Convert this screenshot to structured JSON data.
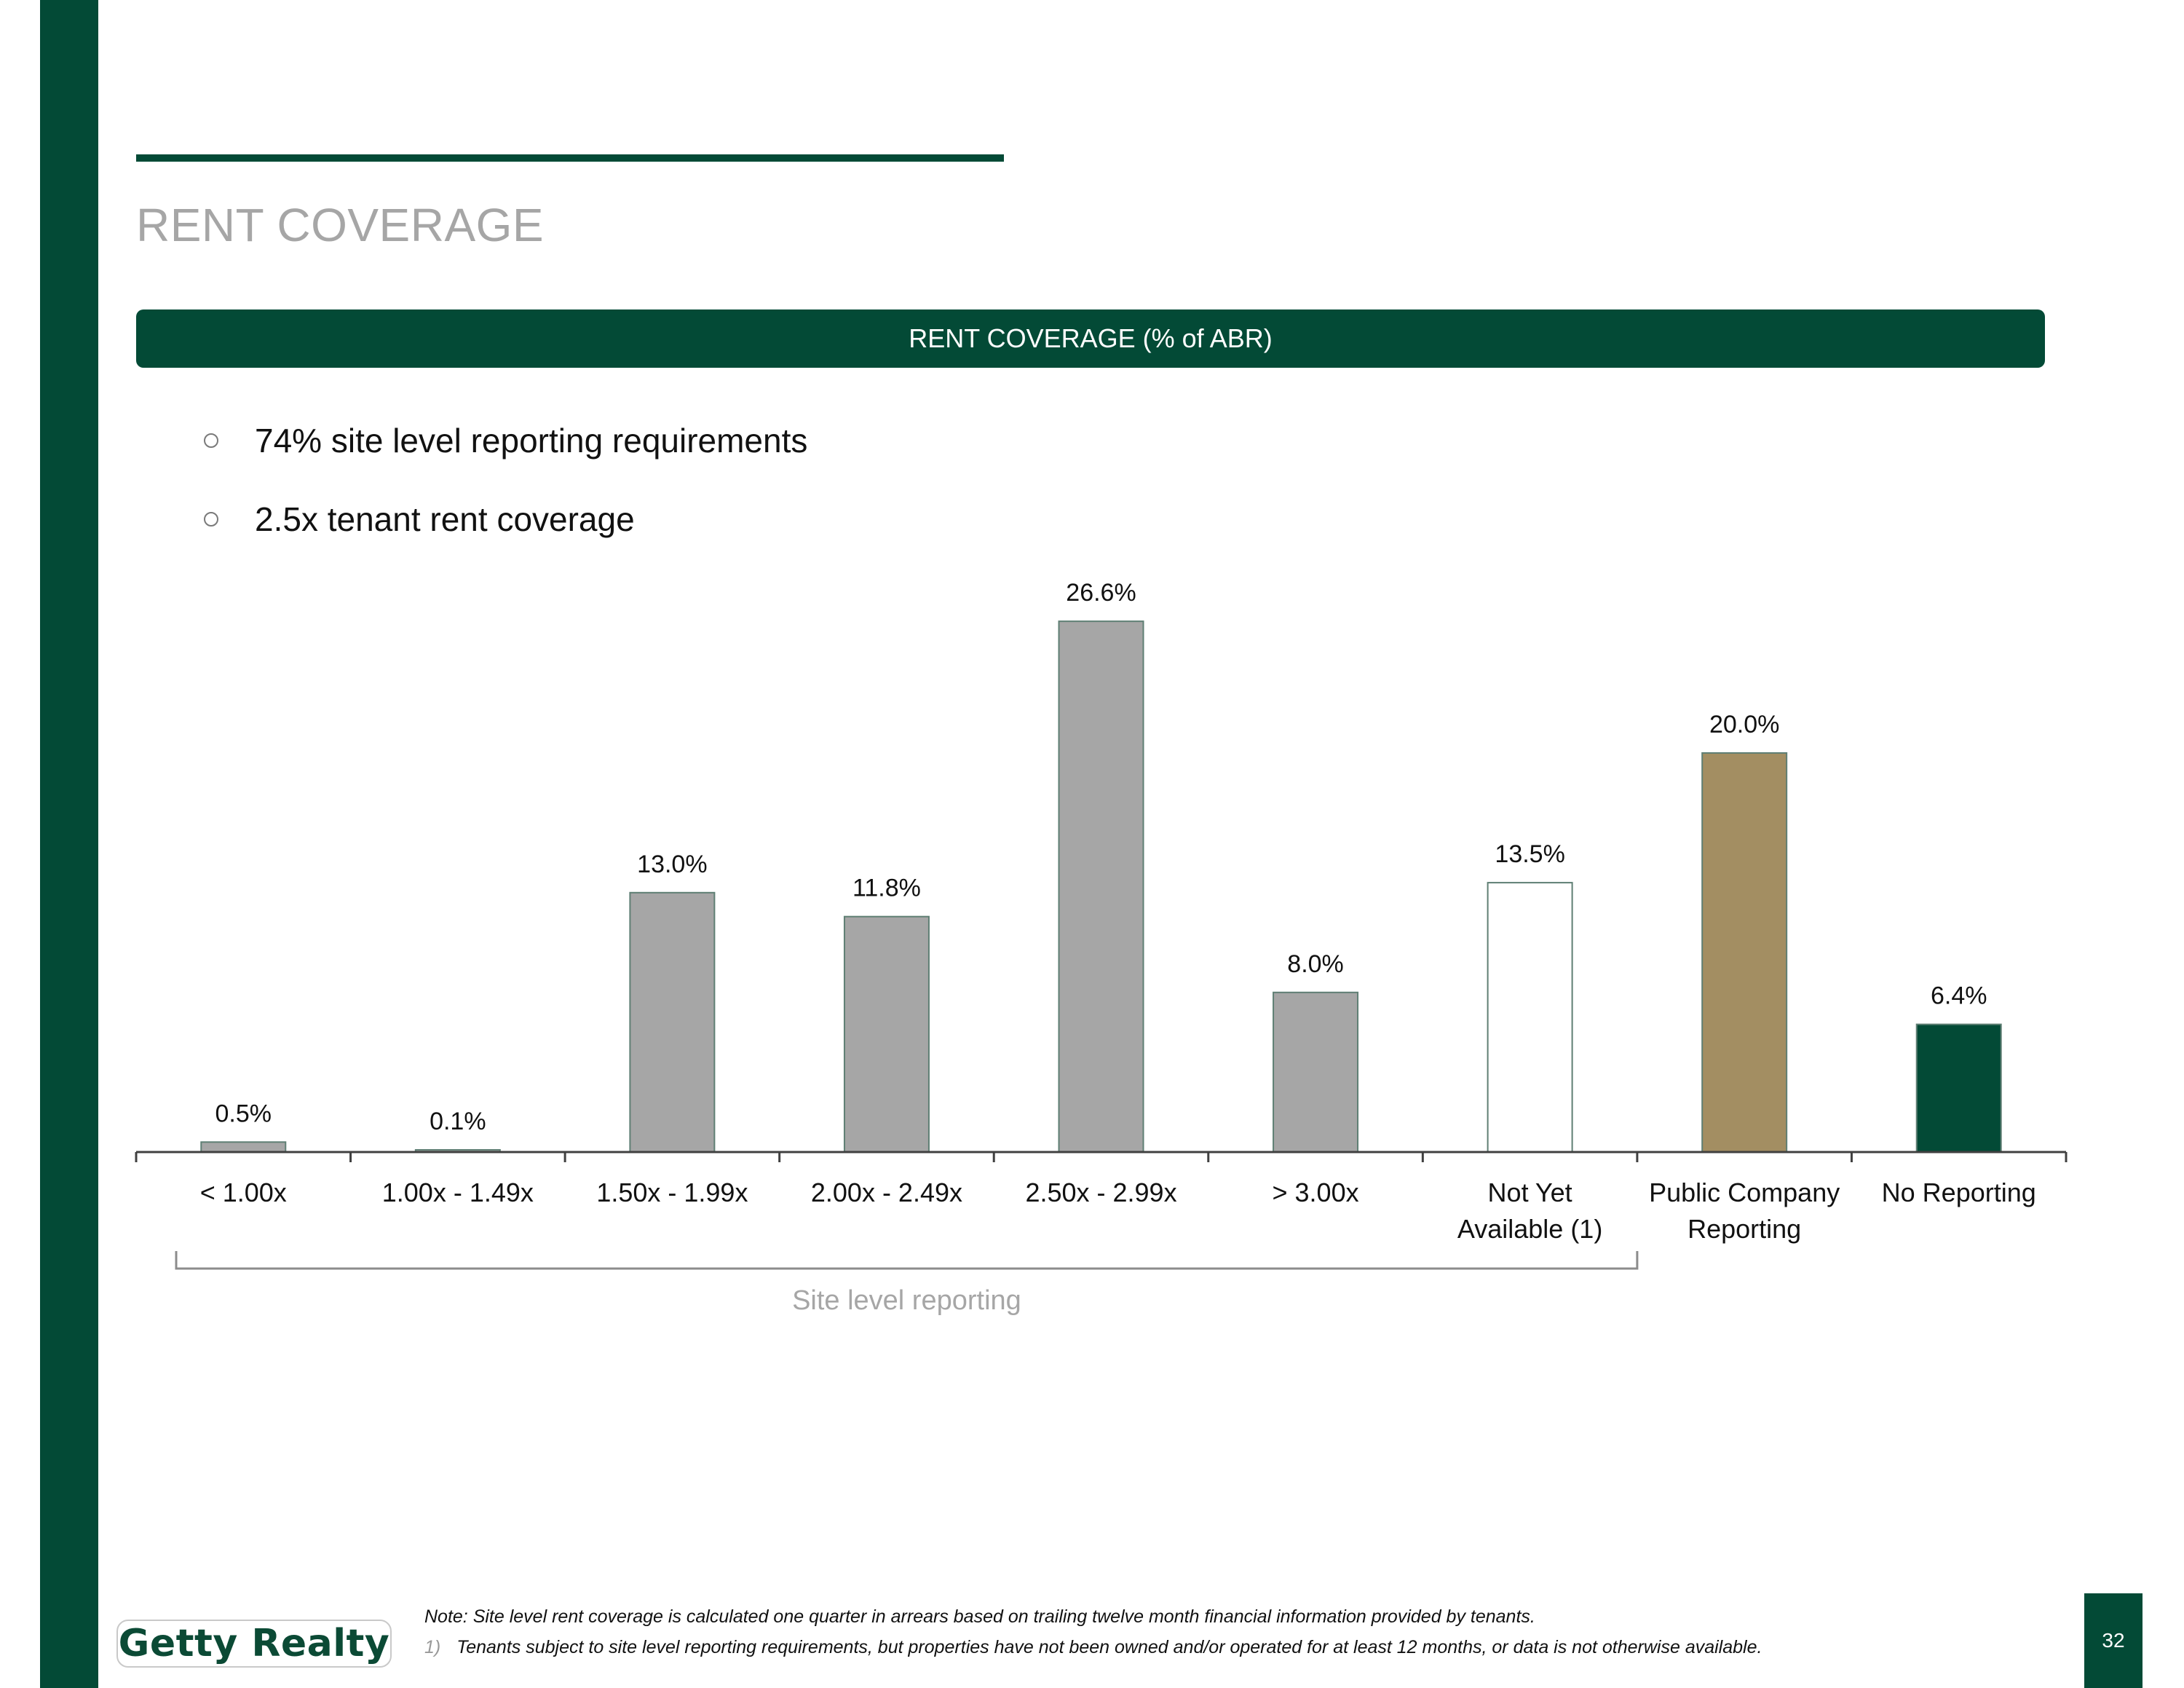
{
  "page": {
    "title": "RENT COVERAGE",
    "page_number": "32",
    "logo_text": "Getty Realty",
    "accent_color": "#034a36"
  },
  "header": {
    "label": "RENT COVERAGE (% of ABR)"
  },
  "bullets": [
    {
      "text": "74% site level reporting requirements"
    },
    {
      "text": "2.5x tenant rent coverage"
    }
  ],
  "chart_data": {
    "type": "bar",
    "categories": [
      [
        "< 1.00x"
      ],
      [
        "1.00x - 1.49x"
      ],
      [
        "1.50x - 1.99x"
      ],
      [
        "2.00x - 2.49x"
      ],
      [
        "2.50x - 2.99x"
      ],
      [
        "> 3.00x"
      ],
      [
        "Not Yet",
        "Available (1)"
      ],
      [
        "Public Company",
        "Reporting"
      ],
      [
        "No Reporting"
      ]
    ],
    "values": [
      0.5,
      0.1,
      13.0,
      11.8,
      26.6,
      8.0,
      13.5,
      20.0,
      6.4
    ],
    "data_labels": [
      "0.5%",
      "0.1%",
      "13.0%",
      "11.8%",
      "26.6%",
      "8.0%",
      "13.5%",
      "20.0%",
      "6.4%"
    ],
    "colors": [
      "#a6a6a6",
      "#a6a6a6",
      "#a6a6a6",
      "#a6a6a6",
      "#a6a6a6",
      "#a6a6a6",
      "#ffffff",
      "#a38e62",
      "#034a36"
    ],
    "bar_stroke": "#5f7f74",
    "ylim": [
      0,
      30
    ],
    "grid": false,
    "bracket": {
      "label": "Site level reporting",
      "from_category": 0,
      "to_category": 6
    }
  },
  "notes": {
    "note": "Note: Site level rent coverage is calculated one quarter in arrears based on trailing twelve month financial information provided by tenants.",
    "footnote_number": "1)",
    "footnote_text": "Tenants subject to site level reporting requirements, but properties have not been owned and/or operated for at least 12 months, or data is not otherwise available."
  }
}
